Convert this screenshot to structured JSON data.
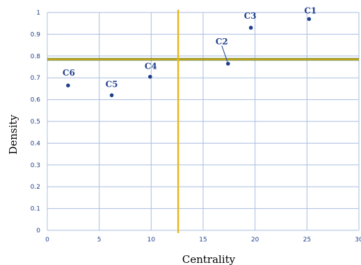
{
  "chart_data": {
    "type": "scatter",
    "title": "",
    "xlabel": "Centrality",
    "ylabel": "Density",
    "xlim": [
      0,
      30
    ],
    "ylim": [
      0,
      1
    ],
    "x_ticks": [
      "0",
      "5",
      "10",
      "15",
      "20",
      "25",
      "30"
    ],
    "y_ticks": [
      "0",
      "0.1",
      "0.2",
      "0.3",
      "0.4",
      "0.5",
      "0.6",
      "0.7",
      "0.8",
      "0.9",
      "1"
    ],
    "grid": true,
    "legend": "none",
    "points": [
      {
        "label": "C1",
        "x": 25.2,
        "y": 0.97
      },
      {
        "label": "C2",
        "x": 17.4,
        "y": 0.765
      },
      {
        "label": "C3",
        "x": 19.6,
        "y": 0.93
      },
      {
        "label": "C4",
        "x": 9.9,
        "y": 0.705
      },
      {
        "label": "C5",
        "x": 6.2,
        "y": 0.62
      },
      {
        "label": "C6",
        "x": 2.0,
        "y": 0.665
      }
    ],
    "reference_lines": {
      "x": 12.6,
      "y": 0.785
    },
    "colors": {
      "grid": "#a9bde0",
      "point": "#1f3f8c",
      "label": "#1f3f8c",
      "reference": "#e8b817",
      "reference_h_outline": "#2e5c1e"
    }
  }
}
